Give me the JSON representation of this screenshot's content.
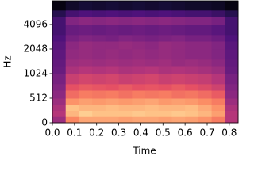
{
  "chart_data": {
    "type": "spectrogram",
    "xlabel": "Time",
    "ylabel": "Hz",
    "xlim": [
      0,
      0.84
    ],
    "ylim": [
      0,
      8000
    ],
    "xticks": [
      {
        "value": 0,
        "label": "0.0"
      },
      0.1,
      0.2,
      0.3,
      0.4,
      0.5,
      0.6,
      0.7,
      0.8
    ],
    "yticks": [
      0,
      512,
      1024,
      2048,
      4096
    ],
    "yscale": "symlog",
    "linthresh": 512,
    "colormap": "magma",
    "zlim": [
      -80,
      0
    ],
    "time_bins": [
      0,
      0.06,
      0.12,
      0.18,
      0.24,
      0.3,
      0.36,
      0.42,
      0.48,
      0.54,
      0.6,
      0.66,
      0.72,
      0.78,
      0.84
    ],
    "freq_bins": [
      0,
      128,
      256,
      384,
      512,
      640,
      768,
      1024,
      1280,
      1536,
      2048,
      2560,
      3072,
      4096,
      5120,
      6144,
      8000
    ],
    "z": [
      [
        -45,
        -20,
        -15,
        -15,
        -15,
        -16,
        -15,
        -15,
        -16,
        -15,
        -16,
        -18,
        -22,
        -40
      ],
      [
        -40,
        -12,
        -8,
        -10,
        -10,
        -10,
        -9,
        -10,
        -10,
        -9,
        -10,
        -12,
        -16,
        -40
      ],
      [
        -42,
        -10,
        -12,
        -12,
        -11,
        -12,
        -12,
        -11,
        -12,
        -12,
        -11,
        -14,
        -18,
        -42
      ],
      [
        -45,
        -18,
        -16,
        -17,
        -16,
        -17,
        -16,
        -15,
        -17,
        -16,
        -17,
        -19,
        -22,
        -45
      ],
      [
        -48,
        -25,
        -22,
        -23,
        -22,
        -24,
        -22,
        -23,
        -22,
        -24,
        -23,
        -25,
        -28,
        -48
      ],
      [
        -50,
        -30,
        -28,
        -29,
        -30,
        -28,
        -30,
        -29,
        -30,
        -28,
        -30,
        -32,
        -35,
        -50
      ],
      [
        -52,
        -36,
        -34,
        -35,
        -34,
        -36,
        -35,
        -34,
        -36,
        -35,
        -36,
        -37,
        -40,
        -52
      ],
      [
        -55,
        -42,
        -40,
        -41,
        -40,
        -42,
        -41,
        -40,
        -42,
        -41,
        -42,
        -43,
        -45,
        -55
      ],
      [
        -56,
        -45,
        -44,
        -45,
        -44,
        -45,
        -44,
        -45,
        -44,
        -46,
        -45,
        -46,
        -48,
        -56
      ],
      [
        -57,
        -47,
        -46,
        -47,
        -46,
        -47,
        -46,
        -47,
        -46,
        -47,
        -48,
        -48,
        -50,
        -57
      ],
      [
        -58,
        -48,
        -46,
        -47,
        -47,
        -46,
        -47,
        -48,
        -46,
        -47,
        -48,
        -48,
        -50,
        -58
      ],
      [
        -60,
        -52,
        -50,
        -51,
        -52,
        -50,
        -51,
        -52,
        -51,
        -50,
        -52,
        -52,
        -54,
        -60
      ],
      [
        -62,
        -55,
        -54,
        -55,
        -54,
        -55,
        -54,
        -55,
        -54,
        -55,
        -56,
        -56,
        -58,
        -62
      ],
      [
        -62,
        -50,
        -48,
        -49,
        -48,
        -49,
        -48,
        -49,
        -48,
        -49,
        -50,
        -50,
        -52,
        -62
      ],
      [
        -68,
        -62,
        -60,
        -61,
        -60,
        -61,
        -60,
        -61,
        -60,
        -61,
        -62,
        -62,
        -64,
        -68
      ],
      [
        -78,
        -74,
        -72,
        -73,
        -72,
        -73,
        -72,
        -73,
        -72,
        -73,
        -74,
        -74,
        -75,
        -78
      ]
    ]
  }
}
